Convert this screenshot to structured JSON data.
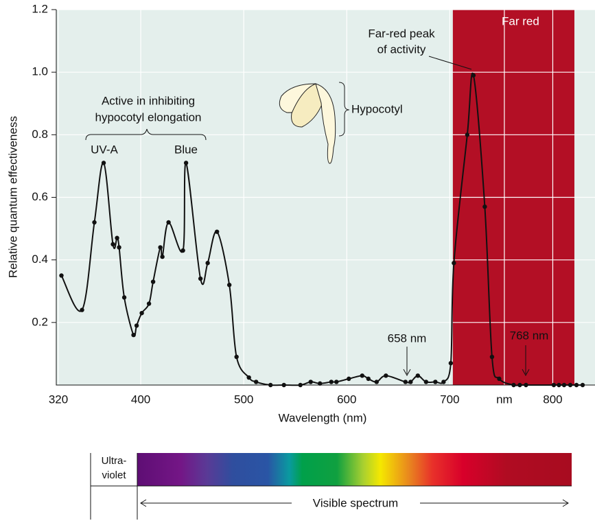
{
  "chart_data": {
    "type": "line",
    "x_label": "Wavelength (nm)",
    "y_label": "Relative quantum effectiveness",
    "xlim": [
      318,
      841
    ],
    "ylim": [
      0,
      1.2
    ],
    "xticks": [
      320,
      400,
      500,
      600,
      700,
      {
        "value": 753,
        "label": "nm"
      },
      800
    ],
    "yticks": [
      0.2,
      0.4,
      0.6,
      0.8,
      {
        "value": 1,
        "label": "1.0"
      },
      1.2
    ],
    "grid": true,
    "region": {
      "label": "Far red",
      "x0": 703,
      "x1": 821,
      "color": "#b30f25"
    },
    "series": [
      {
        "color": "#111111",
        "x": [
          323,
          343,
          355,
          364,
          373,
          377,
          379,
          384,
          393,
          396,
          401,
          408,
          412,
          419,
          421,
          427,
          441,
          444,
          458,
          465,
          474,
          486,
          493,
          505,
          512,
          526,
          539,
          555,
          565,
          574,
          585,
          590,
          602,
          615,
          621,
          629,
          638,
          657,
          662,
          669,
          677,
          686,
          694,
          701,
          704,
          717,
          723,
          734,
          741,
          748,
          762,
          768,
          774,
          801,
          806,
          811,
          817,
          823,
          829
        ],
        "values": [
          0.35,
          0.24,
          0.52,
          0.71,
          0.45,
          0.47,
          0.44,
          0.28,
          0.16,
          0.19,
          0.23,
          0.26,
          0.33,
          0.44,
          0.41,
          0.52,
          0.43,
          0.71,
          0.34,
          0.39,
          0.49,
          0.32,
          0.09,
          0.024,
          0.01,
          0,
          0,
          0,
          0.01,
          0.005,
          0.01,
          0.01,
          0.02,
          0.03,
          0.02,
          0.01,
          0.03,
          0.01,
          0.01,
          0.03,
          0.01,
          0.01,
          0.01,
          0.07,
          0.39,
          0.8,
          0.99,
          0.57,
          0.09,
          0.02,
          0,
          0,
          0,
          0,
          0,
          0,
          0,
          0,
          0
        ]
      }
    ],
    "annotations": {
      "far_red_peak": [
        "Far-red peak",
        "of activity"
      ],
      "active": [
        "Active in inhibiting",
        "hypocotyl elongation"
      ],
      "uva": "UV-A",
      "blue": "Blue",
      "hypocotyl": "Hypocotyl",
      "nm658": "658 nm",
      "nm768": "768 nm"
    },
    "spectrum": {
      "ultraviolet": [
        "Ultra-",
        "violet"
      ],
      "visible": "Visible spectrum"
    }
  }
}
